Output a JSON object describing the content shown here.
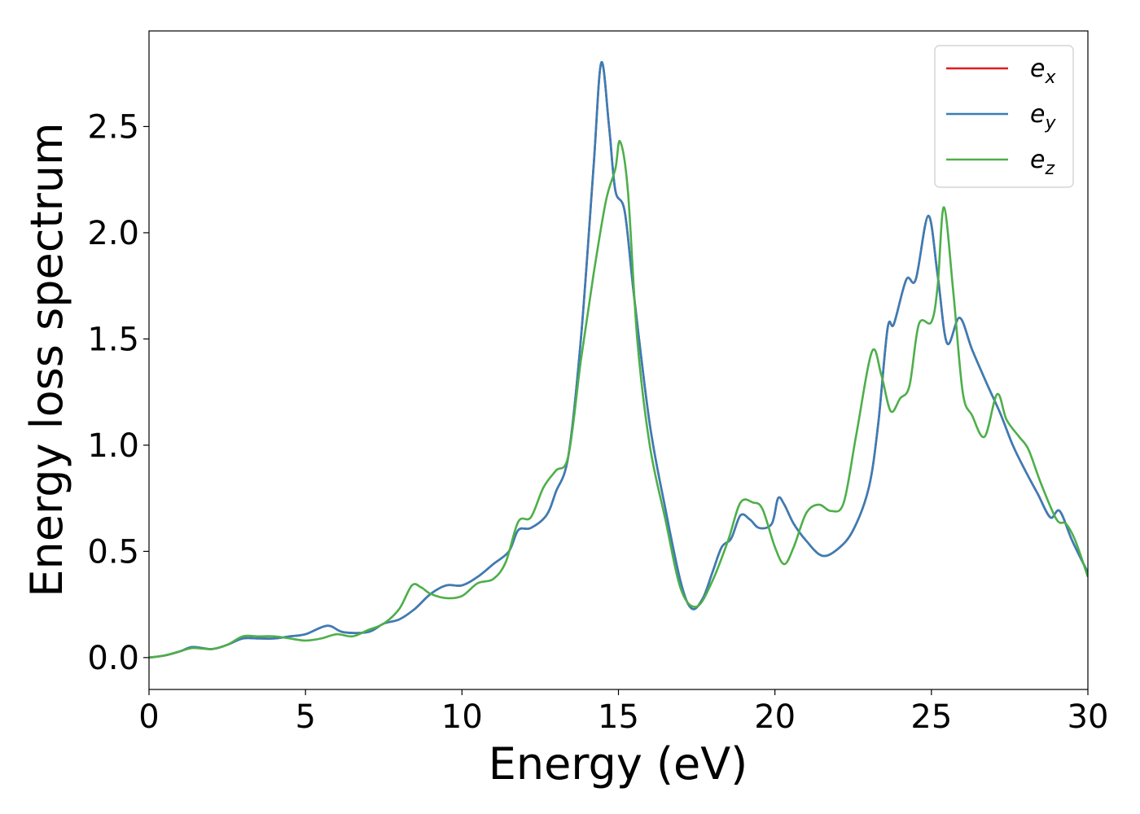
{
  "chart_data": {
    "type": "line",
    "title": "",
    "xlabel": "Energy (eV)",
    "ylabel": "Energy loss spectrum",
    "xlim": [
      0,
      30
    ],
    "ylim": [
      -0.15,
      2.95
    ],
    "xticks": [
      0,
      5,
      10,
      15,
      20,
      25,
      30
    ],
    "xtick_labels": [
      "0",
      "5",
      "10",
      "15",
      "20",
      "25",
      "30"
    ],
    "yticks": [
      0.0,
      0.5,
      1.0,
      1.5,
      2.0,
      2.5
    ],
    "ytick_labels": [
      "0.0",
      "0.5",
      "1.0",
      "1.5",
      "2.0",
      "2.5"
    ],
    "grid": false,
    "legend_position": "top-right",
    "series": [
      {
        "name": "e_x",
        "legend_base": "e",
        "legend_sub": "x",
        "color": "#e41a1c",
        "points": [
          [
            0,
            0
          ],
          [
            0.5,
            0.01
          ],
          [
            1,
            0.03
          ],
          [
            1.4,
            0.05
          ],
          [
            2,
            0.04
          ],
          [
            2.5,
            0.06
          ],
          [
            3,
            0.09
          ],
          [
            3.5,
            0.09
          ],
          [
            4,
            0.09
          ],
          [
            4.5,
            0.1
          ],
          [
            5,
            0.11
          ],
          [
            5.7,
            0.15
          ],
          [
            6.2,
            0.12
          ],
          [
            7,
            0.12
          ],
          [
            7.5,
            0.16
          ],
          [
            8,
            0.18
          ],
          [
            8.5,
            0.23
          ],
          [
            9,
            0.3
          ],
          [
            9.5,
            0.34
          ],
          [
            10,
            0.34
          ],
          [
            10.5,
            0.38
          ],
          [
            11,
            0.44
          ],
          [
            11.5,
            0.5
          ],
          [
            11.8,
            0.6
          ],
          [
            12.2,
            0.61
          ],
          [
            12.7,
            0.67
          ],
          [
            13,
            0.78
          ],
          [
            13.4,
            0.95
          ],
          [
            13.8,
            1.5
          ],
          [
            14.2,
            2.3
          ],
          [
            14.45,
            2.8
          ],
          [
            14.7,
            2.5
          ],
          [
            14.9,
            2.2
          ],
          [
            15.2,
            2.1
          ],
          [
            15.5,
            1.7
          ],
          [
            16,
            1.1
          ],
          [
            16.5,
            0.7
          ],
          [
            17,
            0.35
          ],
          [
            17.35,
            0.23
          ],
          [
            17.7,
            0.28
          ],
          [
            18,
            0.4
          ],
          [
            18.3,
            0.52
          ],
          [
            18.6,
            0.56
          ],
          [
            18.9,
            0.67
          ],
          [
            19.2,
            0.65
          ],
          [
            19.5,
            0.61
          ],
          [
            19.9,
            0.63
          ],
          [
            20.1,
            0.75
          ],
          [
            20.3,
            0.72
          ],
          [
            20.6,
            0.63
          ],
          [
            21,
            0.55
          ],
          [
            21.5,
            0.48
          ],
          [
            22,
            0.51
          ],
          [
            22.5,
            0.6
          ],
          [
            23,
            0.8
          ],
          [
            23.3,
            1.1
          ],
          [
            23.6,
            1.55
          ],
          [
            23.8,
            1.57
          ],
          [
            24.2,
            1.78
          ],
          [
            24.5,
            1.78
          ],
          [
            24.9,
            2.08
          ],
          [
            25.2,
            1.8
          ],
          [
            25.5,
            1.48
          ],
          [
            25.9,
            1.6
          ],
          [
            26.3,
            1.45
          ],
          [
            26.8,
            1.28
          ],
          [
            27.2,
            1.15
          ],
          [
            27.6,
            1.0
          ],
          [
            28,
            0.88
          ],
          [
            28.4,
            0.77
          ],
          [
            28.8,
            0.66
          ],
          [
            29.1,
            0.69
          ],
          [
            29.5,
            0.55
          ],
          [
            30,
            0.4
          ]
        ]
      },
      {
        "name": "e_y",
        "legend_base": "e",
        "legend_sub": "y",
        "color": "#377eb8",
        "points": [
          [
            0,
            0
          ],
          [
            0.5,
            0.01
          ],
          [
            1,
            0.03
          ],
          [
            1.4,
            0.05
          ],
          [
            2,
            0.04
          ],
          [
            2.5,
            0.06
          ],
          [
            3,
            0.09
          ],
          [
            3.5,
            0.09
          ],
          [
            4,
            0.09
          ],
          [
            4.5,
            0.1
          ],
          [
            5,
            0.11
          ],
          [
            5.7,
            0.15
          ],
          [
            6.2,
            0.12
          ],
          [
            7,
            0.12
          ],
          [
            7.5,
            0.16
          ],
          [
            8,
            0.18
          ],
          [
            8.5,
            0.23
          ],
          [
            9,
            0.3
          ],
          [
            9.5,
            0.34
          ],
          [
            10,
            0.34
          ],
          [
            10.5,
            0.38
          ],
          [
            11,
            0.44
          ],
          [
            11.5,
            0.5
          ],
          [
            11.8,
            0.6
          ],
          [
            12.2,
            0.61
          ],
          [
            12.7,
            0.67
          ],
          [
            13,
            0.78
          ],
          [
            13.4,
            0.95
          ],
          [
            13.8,
            1.5
          ],
          [
            14.2,
            2.3
          ],
          [
            14.45,
            2.8
          ],
          [
            14.7,
            2.5
          ],
          [
            14.9,
            2.2
          ],
          [
            15.2,
            2.1
          ],
          [
            15.5,
            1.7
          ],
          [
            16,
            1.1
          ],
          [
            16.5,
            0.7
          ],
          [
            17,
            0.35
          ],
          [
            17.35,
            0.23
          ],
          [
            17.7,
            0.28
          ],
          [
            18,
            0.4
          ],
          [
            18.3,
            0.52
          ],
          [
            18.6,
            0.56
          ],
          [
            18.9,
            0.67
          ],
          [
            19.2,
            0.65
          ],
          [
            19.5,
            0.61
          ],
          [
            19.9,
            0.63
          ],
          [
            20.1,
            0.75
          ],
          [
            20.3,
            0.72
          ],
          [
            20.6,
            0.63
          ],
          [
            21,
            0.55
          ],
          [
            21.5,
            0.48
          ],
          [
            22,
            0.51
          ],
          [
            22.5,
            0.6
          ],
          [
            23,
            0.8
          ],
          [
            23.3,
            1.1
          ],
          [
            23.6,
            1.55
          ],
          [
            23.8,
            1.57
          ],
          [
            24.2,
            1.78
          ],
          [
            24.5,
            1.78
          ],
          [
            24.9,
            2.08
          ],
          [
            25.2,
            1.8
          ],
          [
            25.5,
            1.48
          ],
          [
            25.9,
            1.6
          ],
          [
            26.3,
            1.45
          ],
          [
            26.8,
            1.28
          ],
          [
            27.2,
            1.15
          ],
          [
            27.6,
            1.0
          ],
          [
            28,
            0.88
          ],
          [
            28.4,
            0.77
          ],
          [
            28.8,
            0.66
          ],
          [
            29.1,
            0.69
          ],
          [
            29.5,
            0.55
          ],
          [
            30,
            0.4
          ]
        ]
      },
      {
        "name": "e_z",
        "legend_base": "e",
        "legend_sub": "z",
        "color": "#4daf4a",
        "points": [
          [
            0,
            0
          ],
          [
            0.5,
            0.01
          ],
          [
            1,
            0.03
          ],
          [
            1.4,
            0.045
          ],
          [
            2,
            0.04
          ],
          [
            2.5,
            0.06
          ],
          [
            3,
            0.1
          ],
          [
            3.5,
            0.1
          ],
          [
            4,
            0.1
          ],
          [
            4.5,
            0.09
          ],
          [
            5,
            0.08
          ],
          [
            5.5,
            0.09
          ],
          [
            6,
            0.11
          ],
          [
            6.5,
            0.1
          ],
          [
            7,
            0.13
          ],
          [
            7.5,
            0.16
          ],
          [
            8,
            0.23
          ],
          [
            8.4,
            0.34
          ],
          [
            8.7,
            0.33
          ],
          [
            9,
            0.3
          ],
          [
            9.5,
            0.28
          ],
          [
            10,
            0.29
          ],
          [
            10.5,
            0.35
          ],
          [
            11,
            0.37
          ],
          [
            11.4,
            0.45
          ],
          [
            11.8,
            0.64
          ],
          [
            12.2,
            0.66
          ],
          [
            12.6,
            0.8
          ],
          [
            13,
            0.88
          ],
          [
            13.4,
            0.95
          ],
          [
            13.8,
            1.4
          ],
          [
            14.2,
            1.8
          ],
          [
            14.6,
            2.15
          ],
          [
            14.9,
            2.3
          ],
          [
            15.05,
            2.43
          ],
          [
            15.3,
            2.2
          ],
          [
            15.6,
            1.5
          ],
          [
            16,
            1.0
          ],
          [
            16.5,
            0.65
          ],
          [
            17,
            0.32
          ],
          [
            17.5,
            0.24
          ],
          [
            18,
            0.36
          ],
          [
            18.5,
            0.55
          ],
          [
            18.9,
            0.73
          ],
          [
            19.3,
            0.73
          ],
          [
            19.6,
            0.7
          ],
          [
            20,
            0.52
          ],
          [
            20.3,
            0.44
          ],
          [
            20.6,
            0.52
          ],
          [
            21,
            0.68
          ],
          [
            21.4,
            0.72
          ],
          [
            21.8,
            0.69
          ],
          [
            22.2,
            0.73
          ],
          [
            22.6,
            1.05
          ],
          [
            23.1,
            1.44
          ],
          [
            23.4,
            1.33
          ],
          [
            23.7,
            1.16
          ],
          [
            24,
            1.22
          ],
          [
            24.3,
            1.28
          ],
          [
            24.6,
            1.57
          ],
          [
            25,
            1.58
          ],
          [
            25.2,
            1.75
          ],
          [
            25.4,
            2.12
          ],
          [
            25.7,
            1.72
          ],
          [
            26,
            1.25
          ],
          [
            26.3,
            1.14
          ],
          [
            26.7,
            1.04
          ],
          [
            27.1,
            1.24
          ],
          [
            27.4,
            1.12
          ],
          [
            27.8,
            1.04
          ],
          [
            28.1,
            0.98
          ],
          [
            28.5,
            0.82
          ],
          [
            29,
            0.65
          ],
          [
            29.3,
            0.63
          ],
          [
            29.6,
            0.55
          ],
          [
            30,
            0.38
          ]
        ]
      }
    ]
  }
}
